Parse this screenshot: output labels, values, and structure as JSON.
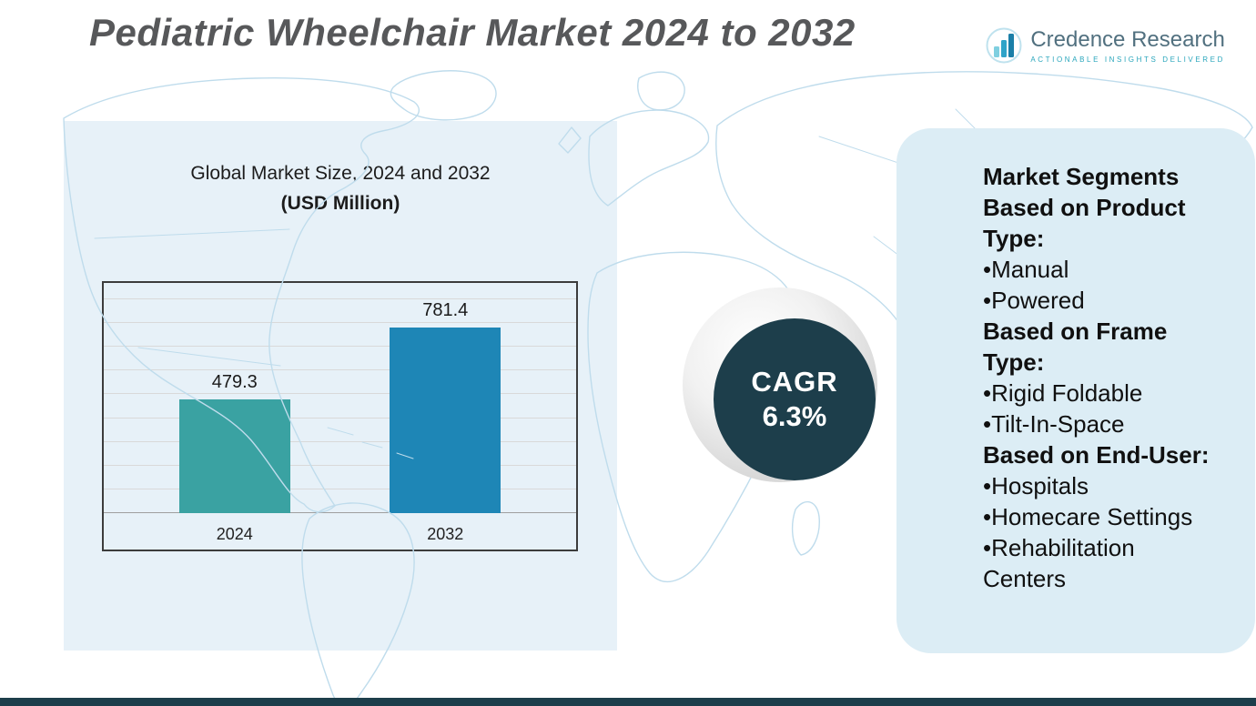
{
  "header": {
    "title": "Pediatric Wheelchair Market 2024 to 2032"
  },
  "logo": {
    "brand": "Credence Research",
    "tagline": "Actionable Insights Delivered"
  },
  "chart": {
    "title_line1": "Global Market Size, 2024 and 2032",
    "title_line2": "(USD Million)"
  },
  "chart_data": {
    "type": "bar",
    "categories": [
      "2024",
      "2032"
    ],
    "values": [
      479.3,
      781.4
    ],
    "title": "Global Market Size, 2024 and 2032 (USD Million)",
    "xlabel": "",
    "ylabel": "",
    "ylim": [
      0,
      900
    ],
    "grid": true,
    "grid_step": 100,
    "legend": "none",
    "bar_colors": [
      "#3aa2a2",
      "#1e86b6"
    ]
  },
  "cagr": {
    "label": "CAGR",
    "value": "6.3%"
  },
  "segments": {
    "items": [
      {
        "type": "heading",
        "text": "Market Segments Based on Product Type:"
      },
      {
        "type": "bullet",
        "text": "Manual"
      },
      {
        "type": "bullet",
        "text": "Powered"
      },
      {
        "type": "heading",
        "text": "Based on Frame Type:"
      },
      {
        "type": "bullet",
        "text": "Rigid Foldable"
      },
      {
        "type": "bullet",
        "text": "Tilt-In-Space"
      },
      {
        "type": "heading",
        "text": "Based on End-User:"
      },
      {
        "type": "bullet",
        "text": "Hospitals"
      },
      {
        "type": "bullet",
        "text": "Homecare Settings"
      },
      {
        "type": "bullet",
        "text": "Rehabilitation Centers"
      }
    ]
  },
  "colors": {
    "accent_teal": "#3aa2a2",
    "accent_blue": "#1e86b6",
    "cagr_circle": "#1d3e4b",
    "left_panel_bg": "#e7f1f8",
    "segments_panel_bg": "#dcedf5",
    "footer_bar": "#1d3e4b",
    "map_line": "#bfdcec",
    "title_text": "#57585a",
    "logo_tagline": "#2aa6bc"
  }
}
